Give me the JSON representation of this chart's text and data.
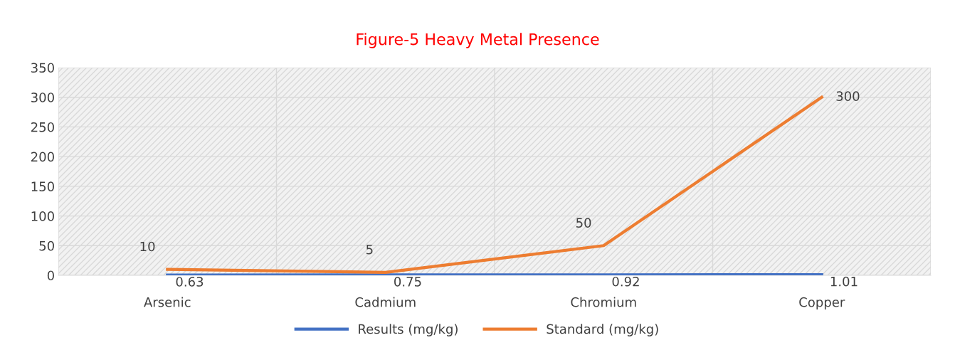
{
  "chart_data": {
    "type": "line",
    "title": "Figure-5 Heavy Metal Presence",
    "categories": [
      "Arsenic",
      "Cadmium",
      "Chromium",
      "Copper"
    ],
    "series": [
      {
        "name": "Results (mg/kg)",
        "color": "#4472c4",
        "values": [
          0.63,
          0.75,
          0.92,
          1.01
        ]
      },
      {
        "name": "Standard (mg/kg)",
        "color": "#ed7d31",
        "values": [
          10,
          5,
          50,
          300
        ]
      }
    ],
    "ylim": [
      0,
      350
    ],
    "yticks": [
      0,
      50,
      100,
      150,
      200,
      250,
      300,
      350
    ],
    "grid": true,
    "legend": "bottom",
    "data_labels": true,
    "marker": "none",
    "line_style": "solid"
  }
}
